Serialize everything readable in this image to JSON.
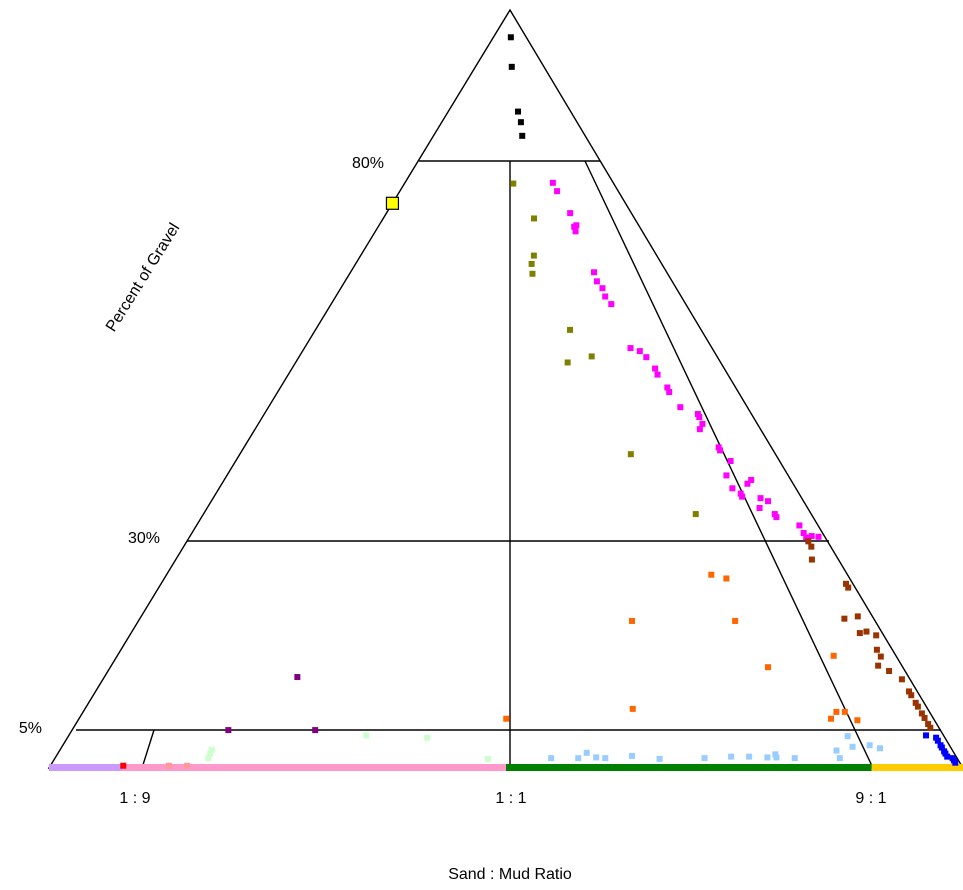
{
  "chart_data": {
    "type": "scatter",
    "title": "",
    "xlabel": "Sand : Mud Ratio",
    "ylabel": "Percent of Gravel",
    "x_ticks": [
      {
        "label": "1 : 9",
        "value": 0.1
      },
      {
        "label": "1 : 1",
        "value": 0.5
      },
      {
        "label": "9 : 1",
        "value": 0.9
      }
    ],
    "y_ticks": [
      {
        "label": "80%",
        "value": 80
      },
      {
        "label": "30%",
        "value": 30
      },
      {
        "label": "5%",
        "value": 5
      }
    ],
    "xlim": [
      0,
      1
    ],
    "ylim": [
      0,
      100
    ],
    "grid": false,
    "legend": "none",
    "series": [
      {
        "color": "#000000",
        "points": [
          [
            0.53,
            96.4
          ],
          [
            0.53,
            92.5
          ],
          [
            0.57,
            86.6
          ],
          [
            0.585,
            85.2
          ],
          [
            0.585,
            83.4
          ]
        ]
      },
      {
        "color": "#808000",
        "points": [
          [
            0.52,
            77.1
          ],
          [
            0.6,
            72.5
          ],
          [
            0.585,
            67.6
          ],
          [
            0.575,
            66.5
          ],
          [
            0.575,
            65.2
          ],
          [
            0.66,
            57.8
          ],
          [
            0.64,
            53.5
          ],
          [
            0.7,
            54.3
          ],
          [
            0.73,
            41.4
          ],
          [
            0.81,
            33.5
          ]
        ]
      },
      {
        "color": "#ff00ff",
        "points": [
          [
            0.71,
            77.2
          ],
          [
            0.72,
            76.1
          ],
          [
            0.75,
            73.2
          ],
          [
            0.75,
            71.4
          ],
          [
            0.75,
            70.8
          ],
          [
            0.76,
            71.6
          ],
          [
            0.77,
            65.4
          ],
          [
            0.77,
            64.2
          ],
          [
            0.78,
            63.3
          ],
          [
            0.78,
            62.2
          ],
          [
            0.79,
            61.2
          ],
          [
            0.8,
            55.4
          ],
          [
            0.82,
            55.0
          ],
          [
            0.83,
            54.2
          ],
          [
            0.84,
            52.7
          ],
          [
            0.84,
            51.9
          ],
          [
            0.85,
            50.2
          ],
          [
            0.85,
            49.6
          ],
          [
            0.86,
            47.6
          ],
          [
            0.89,
            46.7
          ],
          [
            0.89,
            46.3
          ],
          [
            0.89,
            45.4
          ],
          [
            0.88,
            44.7
          ],
          [
            0.9,
            42.3
          ],
          [
            0.9,
            41.9
          ],
          [
            0.91,
            40.5
          ],
          [
            0.89,
            38.6
          ],
          [
            0.93,
            38.0
          ],
          [
            0.92,
            37.5
          ],
          [
            0.89,
            36.9
          ],
          [
            0.9,
            36.2
          ],
          [
            0.9,
            35.8
          ],
          [
            0.93,
            35.6
          ],
          [
            0.92,
            34.3
          ],
          [
            0.94,
            35.2
          ],
          [
            0.94,
            33.5
          ],
          [
            0.94,
            33.1
          ],
          [
            0.97,
            32.0
          ],
          [
            0.97,
            31.0
          ],
          [
            0.97,
            30.4
          ],
          [
            0.98,
            30.6
          ],
          [
            0.99,
            30.5
          ]
        ]
      },
      {
        "color": "#993300",
        "points": [
          [
            0.97,
            29.9
          ],
          [
            0.97,
            29.2
          ],
          [
            0.96,
            27.5
          ],
          [
            0.99,
            24.3
          ],
          [
            0.99,
            23.8
          ],
          [
            0.98,
            20.0
          ],
          [
            0.96,
            19.7
          ],
          [
            0.97,
            17.8
          ],
          [
            0.98,
            18.0
          ],
          [
            0.99,
            17.5
          ],
          [
            0.98,
            15.6
          ],
          [
            0.98,
            14.7
          ],
          [
            0.97,
            13.5
          ],
          [
            0.98,
            12.8
          ],
          [
            0.99,
            11.7
          ],
          [
            0.99,
            10.1
          ],
          [
            0.99,
            9.6
          ],
          [
            0.99,
            8.6
          ],
          [
            0.99,
            8.1
          ],
          [
            0.99,
            7.2
          ],
          [
            0.99,
            6.6
          ],
          [
            0.99,
            5.8
          ],
          [
            0.99,
            5.3
          ]
        ]
      },
      {
        "color": "#ff6600",
        "points": [
          [
            0.8,
            25.5
          ],
          [
            0.82,
            25.0
          ],
          [
            0.67,
            19.4
          ],
          [
            0.81,
            19.4
          ],
          [
            0.83,
            13.3
          ],
          [
            0.92,
            14.8
          ],
          [
            0.65,
            7.8
          ],
          [
            0.9,
            7.4
          ],
          [
            0.88,
            6.5
          ],
          [
            0.89,
            7.4
          ],
          [
            0.91,
            6.3
          ],
          [
            0.5,
            6.5
          ]
        ]
      },
      {
        "color": "#0000ff",
        "points": [
          [
            0.98,
            4.3
          ],
          [
            0.99,
            4.0
          ],
          [
            0.99,
            3.6
          ],
          [
            0.99,
            3.0
          ],
          [
            0.99,
            2.7
          ],
          [
            0.99,
            2.2
          ],
          [
            0.99,
            1.9
          ],
          [
            0.99,
            1.5
          ],
          [
            0.995,
            1.3
          ],
          [
            0.995,
            1.0
          ],
          [
            0.995,
            0.7
          ]
        ]
      },
      {
        "color": "#99ccff",
        "points": [
          [
            0.55,
            1.3
          ],
          [
            0.58,
            1.3
          ],
          [
            0.59,
            2.0
          ],
          [
            0.6,
            1.4
          ],
          [
            0.61,
            1.3
          ],
          [
            0.64,
            1.6
          ],
          [
            0.67,
            1.2
          ],
          [
            0.72,
            1.3
          ],
          [
            0.75,
            1.5
          ],
          [
            0.77,
            1.5
          ],
          [
            0.79,
            1.4
          ],
          [
            0.8,
            1.4
          ],
          [
            0.8,
            1.8
          ],
          [
            0.82,
            1.3
          ],
          [
            0.87,
            1.3
          ],
          [
            0.87,
            2.3
          ],
          [
            0.89,
            2.8
          ],
          [
            0.89,
            4.2
          ],
          [
            0.91,
            3.0
          ],
          [
            0.92,
            2.6
          ]
        ]
      },
      {
        "color": "#800080",
        "points": [
          [
            0.24,
            12.0
          ],
          [
            0.18,
            5.0
          ],
          [
            0.28,
            5.0
          ]
        ]
      },
      {
        "color": "#ccffcc",
        "points": [
          [
            0.17,
            1.3
          ],
          [
            0.17,
            1.9
          ],
          [
            0.17,
            2.4
          ],
          [
            0.34,
            4.3
          ],
          [
            0.41,
            4.0
          ],
          [
            0.48,
            1.2
          ]
        ]
      },
      {
        "color": "#ff9999",
        "points": [
          [
            0.13,
            0.3
          ],
          [
            0.15,
            0.3
          ]
        ]
      },
      {
        "color": "#ff0000",
        "points": [
          [
            0.08,
            0.3
          ]
        ]
      }
    ],
    "baseline_bands": [
      {
        "color": "#cc99ff",
        "from": 0.0,
        "to": 0.08
      },
      {
        "color": "#ff99cc",
        "from": 0.08,
        "to": 0.5
      },
      {
        "color": "#008000",
        "from": 0.5,
        "to": 0.9
      },
      {
        "color": "#ffcc00",
        "from": 0.9,
        "to": 1.0
      }
    ],
    "highlight_markers": [
      {
        "color": "#ffff00",
        "x": 0.0,
        "y": 74.5,
        "shape": "square-outlined"
      }
    ]
  }
}
